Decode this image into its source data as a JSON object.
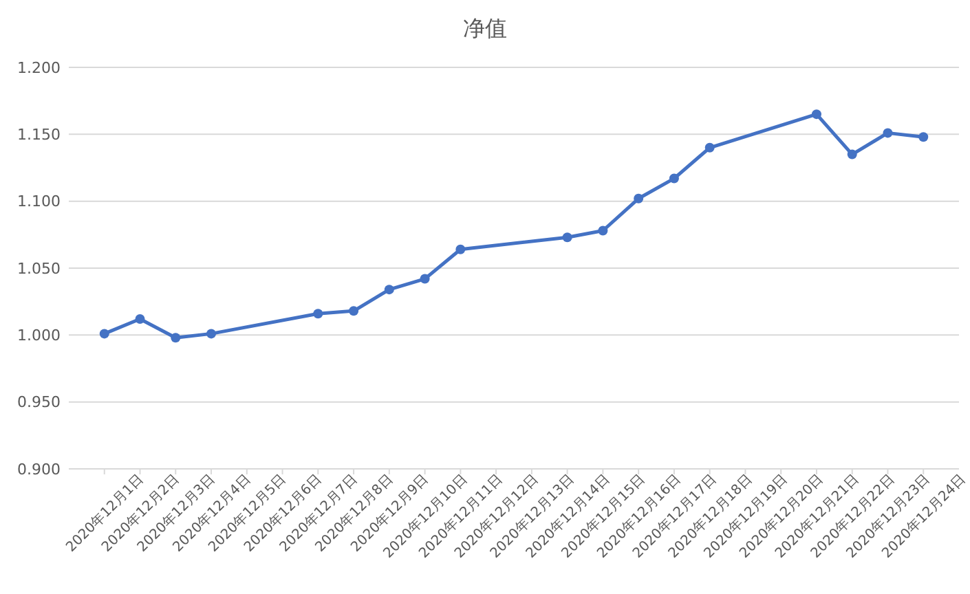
{
  "chart_data": {
    "type": "line",
    "title": "净值",
    "x": [
      "2020-12-01",
      "2020-12-02",
      "2020-12-03",
      "2020-12-04",
      "2020-12-07",
      "2020-12-08",
      "2020-12-09",
      "2020-12-10",
      "2020-12-11",
      "2020-12-14",
      "2020-12-15",
      "2020-12-16",
      "2020-12-17",
      "2020-12-18",
      "2020-12-21",
      "2020-12-22",
      "2020-12-23",
      "2020-12-24"
    ],
    "series": [
      {
        "color": "#4472c4",
        "values": [
          1.001,
          1.012,
          0.998,
          1.001,
          1.016,
          1.018,
          1.034,
          1.042,
          1.064,
          1.073,
          1.078,
          1.102,
          1.117,
          1.14,
          1.165,
          1.135,
          1.151,
          1.148
        ]
      }
    ],
    "xlim": [
      "2020-11-30",
      "2020-12-25"
    ],
    "xticks": [
      {
        "value": "2020-12-01",
        "label": "2020年12月1日"
      },
      {
        "value": "2020-12-02",
        "label": "2020年12月2日"
      },
      {
        "value": "2020-12-03",
        "label": "2020年12月3日"
      },
      {
        "value": "2020-12-04",
        "label": "2020年12月4日"
      },
      {
        "value": "2020-12-05",
        "label": "2020年12月5日"
      },
      {
        "value": "2020-12-06",
        "label": "2020年12月6日"
      },
      {
        "value": "2020-12-07",
        "label": "2020年12月7日"
      },
      {
        "value": "2020-12-08",
        "label": "2020年12月8日"
      },
      {
        "value": "2020-12-09",
        "label": "2020年12月9日"
      },
      {
        "value": "2020-12-10",
        "label": "2020年12月10日"
      },
      {
        "value": "2020-12-11",
        "label": "2020年12月11日"
      },
      {
        "value": "2020-12-12",
        "label": "2020年12月12日"
      },
      {
        "value": "2020-12-13",
        "label": "2020年12月13日"
      },
      {
        "value": "2020-12-14",
        "label": "2020年12月14日"
      },
      {
        "value": "2020-12-15",
        "label": "2020年12月15日"
      },
      {
        "value": "2020-12-16",
        "label": "2020年12月16日"
      },
      {
        "value": "2020-12-17",
        "label": "2020年12月17日"
      },
      {
        "value": "2020-12-18",
        "label": "2020年12月18日"
      },
      {
        "value": "2020-12-19",
        "label": "2020年12月19日"
      },
      {
        "value": "2020-12-20",
        "label": "2020年12月20日"
      },
      {
        "value": "2020-12-21",
        "label": "2020年12月21日"
      },
      {
        "value": "2020-12-22",
        "label": "2020年12月22日"
      },
      {
        "value": "2020-12-23",
        "label": "2020年12月23日"
      },
      {
        "value": "2020-12-24",
        "label": "2020年12月24日"
      }
    ],
    "ylim": [
      0.9,
      1.2
    ],
    "yticks": [
      {
        "value": 0.9,
        "label": "0.900"
      },
      {
        "value": 0.95,
        "label": "0.950"
      },
      {
        "value": 1.0,
        "label": "1.000"
      },
      {
        "value": 1.05,
        "label": "1.050"
      },
      {
        "value": 1.1,
        "label": "1.100"
      },
      {
        "value": 1.15,
        "label": "1.150"
      },
      {
        "value": 1.2,
        "label": "1.200"
      }
    ],
    "grid": "y",
    "marker": "circle",
    "line_style": "solid"
  }
}
